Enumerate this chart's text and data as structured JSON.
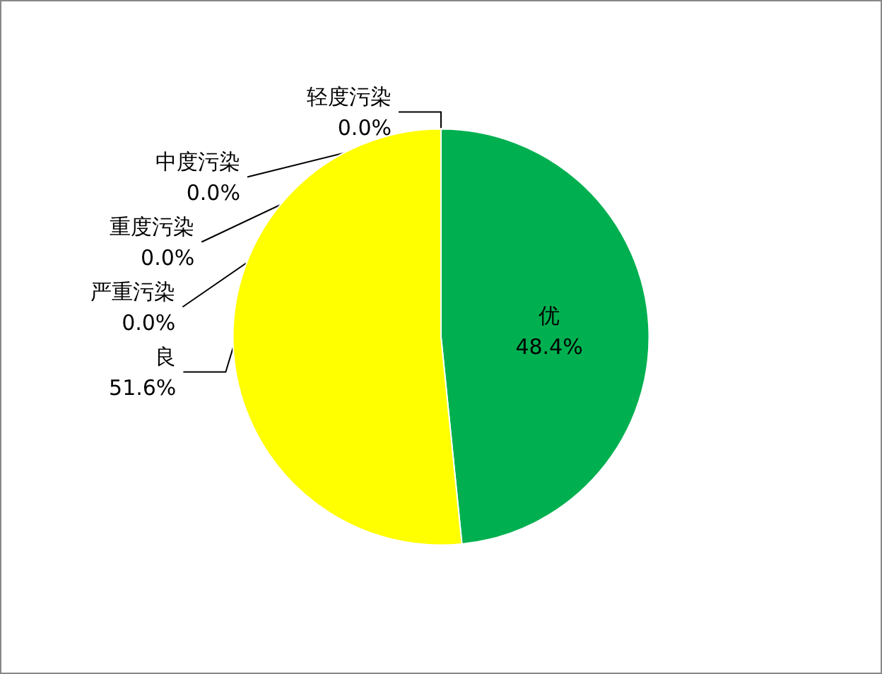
{
  "chart_data": {
    "type": "pie",
    "categories": [
      "优",
      "良",
      "轻度污染",
      "中度污染",
      "重度污染",
      "严重污染"
    ],
    "values": [
      48.4,
      51.6,
      0.0,
      0.0,
      0.0,
      0.0
    ],
    "colors": [
      "#00b050",
      "#ffff00",
      "#ff7e00",
      "#ff0000",
      "#99004c",
      "#7e0023"
    ],
    "value_labels": [
      "48.4%",
      "51.6%",
      "0.0%",
      "0.0%",
      "0.0%",
      "0.0%"
    ],
    "legend": false
  }
}
